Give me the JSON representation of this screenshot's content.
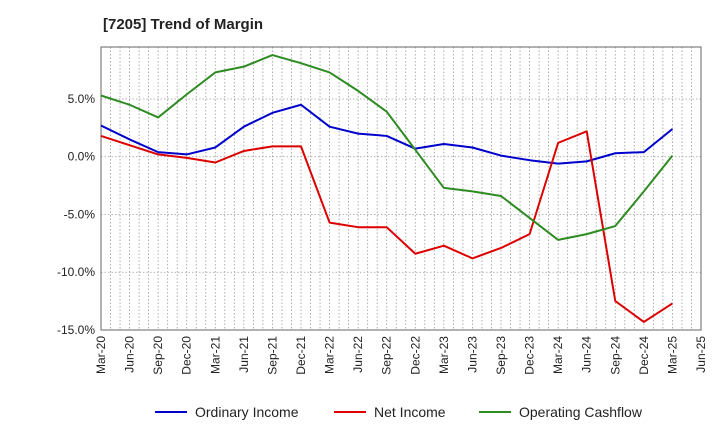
{
  "chart_data": {
    "type": "line",
    "title": "[7205]  Trend of Margin",
    "xlabel": "",
    "ylabel": "",
    "x": [
      "Mar-20",
      "Jun-20",
      "Sep-20",
      "Dec-20",
      "Mar-21",
      "Jun-21",
      "Sep-21",
      "Dec-21",
      "Mar-22",
      "Jun-22",
      "Sep-22",
      "Dec-22",
      "Mar-23",
      "Jun-23",
      "Sep-23",
      "Dec-23",
      "Mar-24",
      "Jun-24",
      "Sep-24",
      "Dec-24",
      "Mar-25",
      "Jun-25"
    ],
    "ylim": [
      -15,
      9.5
    ],
    "yticks": [
      5,
      0,
      -5,
      -10,
      -15
    ],
    "ytick_labels": [
      "5.0%",
      "0.0%",
      "-5.0%",
      "-10.0%",
      "-15.0%"
    ],
    "grid": "on (dotted)",
    "legend_position": "bottom",
    "series": [
      {
        "name": "Ordinary Income",
        "color": "#0000cc",
        "values": [
          2.7,
          1.5,
          0.4,
          0.2,
          0.8,
          2.6,
          3.8,
          4.5,
          2.6,
          2.0,
          1.8,
          0.7,
          1.1,
          0.8,
          0.1,
          -0.3,
          -0.6,
          -0.4,
          0.3,
          0.4,
          2.4,
          null
        ]
      },
      {
        "name": "Net Income",
        "color": "#dd0000",
        "values": [
          1.8,
          1.0,
          0.2,
          -0.1,
          -0.5,
          0.5,
          0.9,
          0.9,
          -5.7,
          -6.1,
          -6.1,
          -8.4,
          -7.7,
          -8.8,
          -7.9,
          -6.7,
          1.2,
          2.2,
          -12.5,
          -14.3,
          -12.7,
          null
        ]
      },
      {
        "name": "Operating Cashflow",
        "color": "#2e8b22",
        "values": [
          5.3,
          4.5,
          3.4,
          5.4,
          7.3,
          7.8,
          8.8,
          8.1,
          7.3,
          5.7,
          3.9,
          0.6,
          -2.7,
          -3.0,
          -3.4,
          -5.3,
          -7.2,
          -6.7,
          -6.0,
          -3.0,
          0.1,
          null
        ]
      }
    ]
  }
}
